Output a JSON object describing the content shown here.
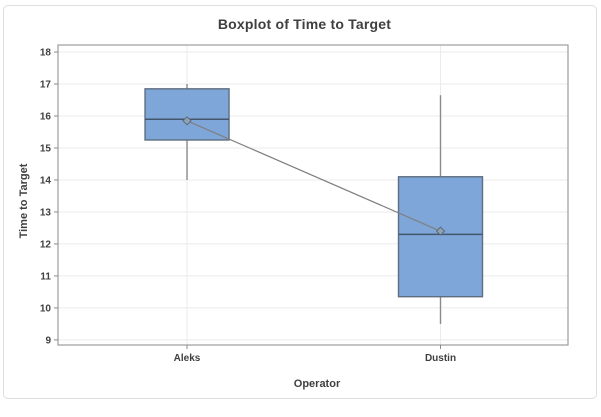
{
  "chart_data": {
    "type": "boxplot",
    "title": "Boxplot of Time to Target",
    "xlabel": "Operator",
    "ylabel": "Time to Target",
    "categories": [
      "Aleks",
      "Dustin"
    ],
    "yticks": [
      9,
      10,
      11,
      12,
      13,
      14,
      15,
      16,
      17,
      18
    ],
    "ylim": [
      8.84,
      18.22
    ],
    "grid": {
      "horizontal": true,
      "vertical_at_categories": true
    },
    "legend": "none",
    "series": [
      {
        "category": "Aleks",
        "whisker_low": 14.0,
        "q1": 15.25,
        "median": 15.9,
        "q3": 16.85,
        "whisker_high": 17.0,
        "mean": 15.85
      },
      {
        "category": "Dustin",
        "whisker_low": 9.5,
        "q1": 10.35,
        "median": 12.3,
        "q3": 14.1,
        "whisker_high": 16.65,
        "mean": 12.4
      }
    ],
    "mean_connect_line": true,
    "colors": {
      "box_fill": "#7EA6D9",
      "box_border": "#5E6E80",
      "median_line": "#43566B",
      "whisker": "#8A8A8A",
      "mean_line": "#7F7F7F",
      "mean_marker_fill": "#8DA3B8",
      "mean_marker_border": "#606A74",
      "gridline": "#EBEBEB",
      "plot_border": "#9C9C9C",
      "tick": "#8A8A8A",
      "text": "#3F3F3F"
    }
  }
}
